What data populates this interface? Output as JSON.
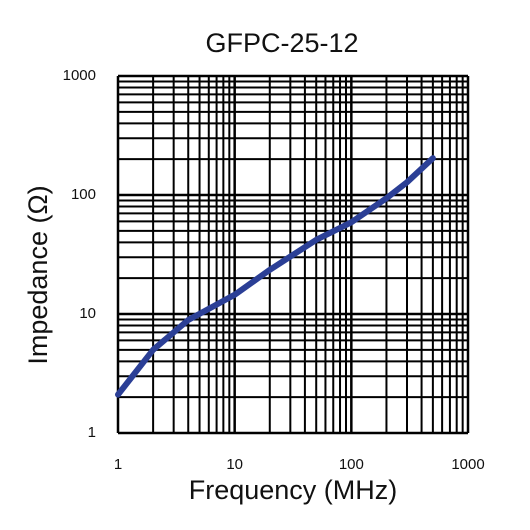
{
  "chart_data": {
    "type": "line",
    "title": "GFPC-25-12",
    "x_label": "Frequency (MHz)",
    "y_label": "Impedance (Ω)",
    "x": [
      1,
      2,
      4,
      10,
      20,
      50,
      100,
      200,
      300,
      500
    ],
    "series": [
      {
        "name": "GFPC-25-12",
        "color": "#2b3f96",
        "values": [
          2.1,
          5.0,
          8.9,
          14.5,
          23.5,
          42,
          59,
          94,
          128,
          204
        ]
      }
    ],
    "xlim": [
      1,
      1000
    ],
    "ylim": [
      1,
      1000
    ],
    "xticks": [
      1,
      10,
      100,
      1000
    ],
    "yticks": [
      1,
      10,
      100,
      1000
    ],
    "xscale": "log",
    "yscale": "log",
    "grid": true,
    "minor_grid": true
  }
}
